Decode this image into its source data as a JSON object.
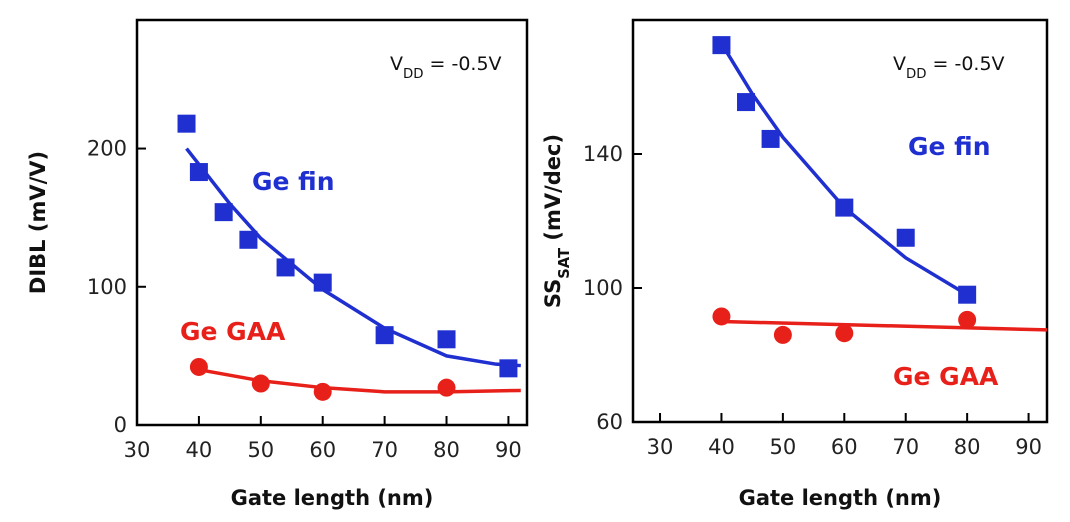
{
  "chart_data": [
    {
      "type": "scatter",
      "xlabel": "Gate length (nm)",
      "ylabel": "DIBL (mV/V)",
      "annotation": {
        "main": "V",
        "sub": "DD",
        "rest": " = -0.5V"
      },
      "xlim": [
        30,
        93
      ],
      "ylim": [
        0,
        293
      ],
      "xticks": [
        30,
        40,
        50,
        60,
        70,
        80,
        90
      ],
      "yticks": [
        0,
        100,
        200
      ],
      "series": [
        {
          "name": "Ge fin",
          "color": "#1f2fd0",
          "marker": "square",
          "x": [
            38,
            40,
            44,
            48,
            54,
            60,
            70,
            80,
            90
          ],
          "values": [
            218,
            183,
            154,
            134,
            114,
            103,
            65,
            62,
            41
          ],
          "fit_x": [
            38,
            45,
            50,
            60,
            70,
            80,
            88,
            92
          ],
          "fit_values": [
            200,
            160,
            135,
            98,
            70,
            50,
            44,
            43
          ]
        },
        {
          "name": "Ge GAA",
          "color": "#e8201a",
          "marker": "circle",
          "x": [
            40,
            50,
            60,
            80
          ],
          "values": [
            42,
            30,
            24,
            27
          ],
          "fit_x": [
            40,
            50,
            60,
            70,
            80,
            92
          ],
          "fit_values": [
            40,
            32,
            27,
            24,
            24,
            25
          ]
        }
      ]
    },
    {
      "type": "scatter",
      "xlabel": "Gate length (nm)",
      "ylabel": {
        "main": "SS",
        "sub": "SAT",
        "rest": " (mV/dec)"
      },
      "annotation": {
        "main": "V",
        "sub": "DD",
        "rest": " = -0.5V"
      },
      "xlim": [
        25.6,
        93
      ],
      "ylim": [
        60,
        180
      ],
      "xticks": [
        30,
        40,
        50,
        60,
        70,
        80,
        90
      ],
      "yticks": [
        60,
        100,
        140
      ],
      "series": [
        {
          "name": "Ge fin",
          "color": "#1f2fd0",
          "marker": "square",
          "x": [
            40,
            44,
            48,
            60,
            70,
            80
          ],
          "values": [
            172.5,
            155.5,
            144.5,
            124,
            115,
            98
          ],
          "fit_x": [
            40,
            45,
            50,
            60,
            70,
            80
          ],
          "fit_values": [
            173,
            158,
            145,
            124,
            109,
            98
          ]
        },
        {
          "name": "Ge GAA",
          "color": "#e8201a",
          "marker": "circle",
          "x": [
            40,
            50,
            60,
            80
          ],
          "values": [
            91.5,
            86,
            86.5,
            90.5
          ],
          "fit_x": [
            40,
            93
          ],
          "fit_values": [
            90,
            87.5
          ]
        }
      ]
    }
  ]
}
